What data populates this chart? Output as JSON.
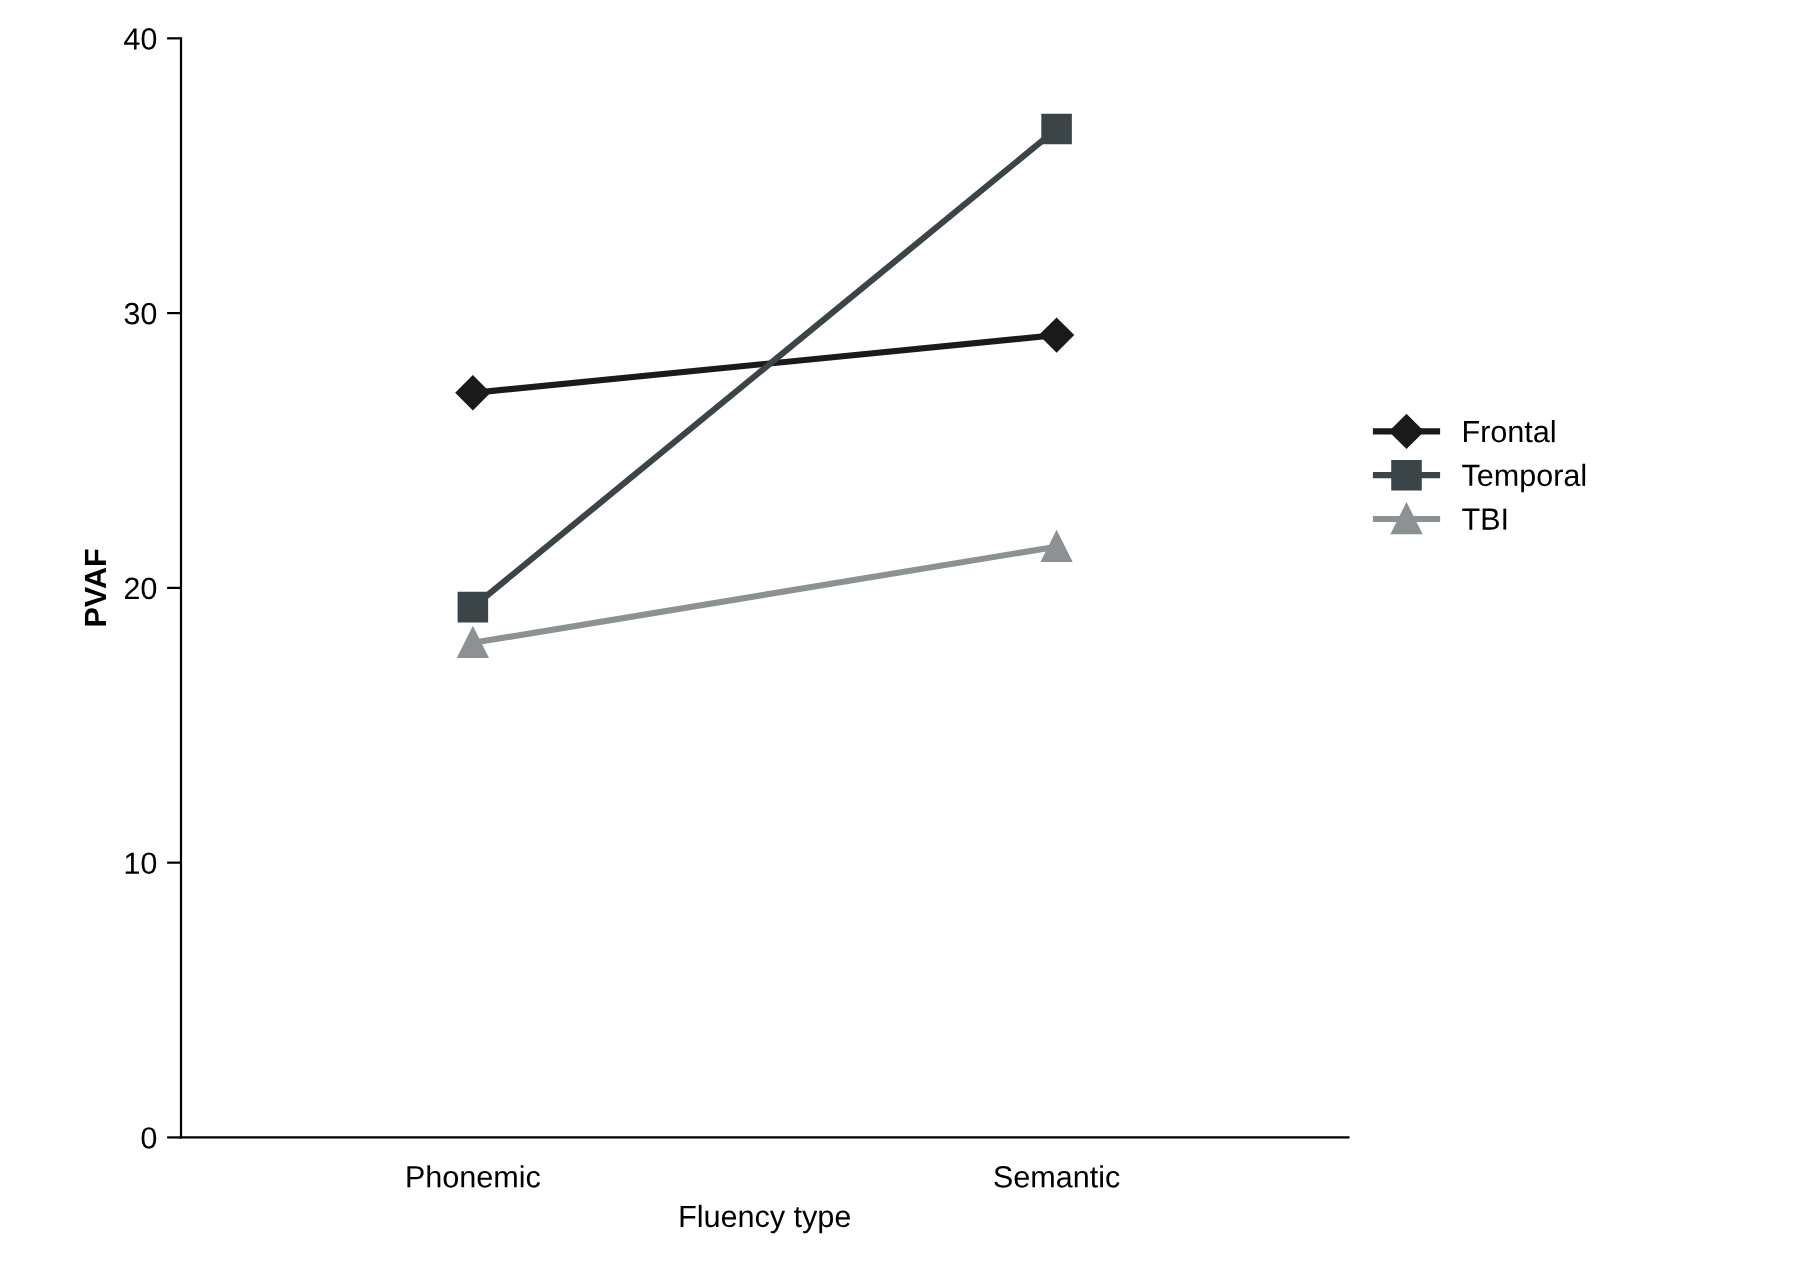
{
  "chart_data": {
    "type": "line",
    "xlabel": "Fluency type",
    "ylabel": "PVAF",
    "categories": [
      "Phonemic",
      "Semantic"
    ],
    "series": [
      {
        "name": "Frontal",
        "color": "#1a1a1a",
        "marker": "diamond",
        "values": [
          27.1,
          29.2
        ]
      },
      {
        "name": "Temporal",
        "color": "#3b4446",
        "marker": "square",
        "values": [
          19.3,
          36.7
        ]
      },
      {
        "name": "TBI",
        "color": "#8c9194",
        "marker": "triangle",
        "values": [
          18.0,
          21.5
        ]
      }
    ],
    "ylim": [
      0,
      40
    ],
    "yticks": [
      0,
      10,
      20,
      30,
      40
    ],
    "grid": false,
    "legend": "right",
    "line_style": "solid"
  }
}
